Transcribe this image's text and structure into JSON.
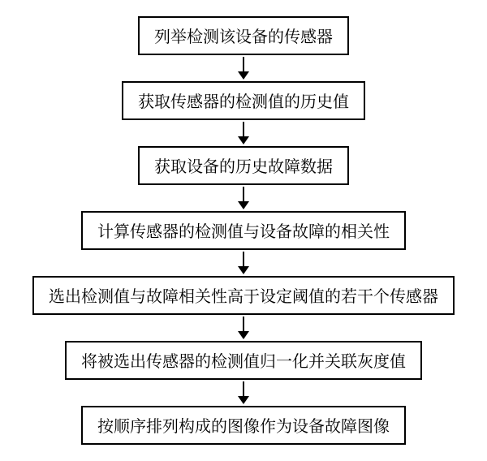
{
  "flowchart": {
    "type": "flowchart-vertical",
    "background_color": "#ffffff",
    "node_border_color": "#000000",
    "node_border_width": 2,
    "node_bg_color": "#ffffff",
    "node_font_size": 20,
    "arrow_color": "#000000",
    "arrow_shaft_width": 2,
    "arrow_head_width": 14,
    "arrow_head_height": 10,
    "arrow_gap_height": 28,
    "nodes": [
      {
        "id": "n1",
        "label": "列举检测该设备的传感器"
      },
      {
        "id": "n2",
        "label": "获取传感器的检测值的历史值"
      },
      {
        "id": "n3",
        "label": "获取设备的历史故障数据"
      },
      {
        "id": "n4",
        "label": "计算传感器的检测值与设备故障的相关性"
      },
      {
        "id": "n5",
        "label": "选出检测值与故障相关性高于设定阈值的若干个传感器"
      },
      {
        "id": "n6",
        "label": "将被选出传感器的检测值归一化并关联灰度值"
      },
      {
        "id": "n7",
        "label": "按顺序排列构成的图像作为设备故障图像"
      }
    ],
    "edges": [
      {
        "from": "n1",
        "to": "n2"
      },
      {
        "from": "n2",
        "to": "n3"
      },
      {
        "from": "n3",
        "to": "n4"
      },
      {
        "from": "n4",
        "to": "n5"
      },
      {
        "from": "n5",
        "to": "n6"
      },
      {
        "from": "n6",
        "to": "n7"
      }
    ]
  }
}
